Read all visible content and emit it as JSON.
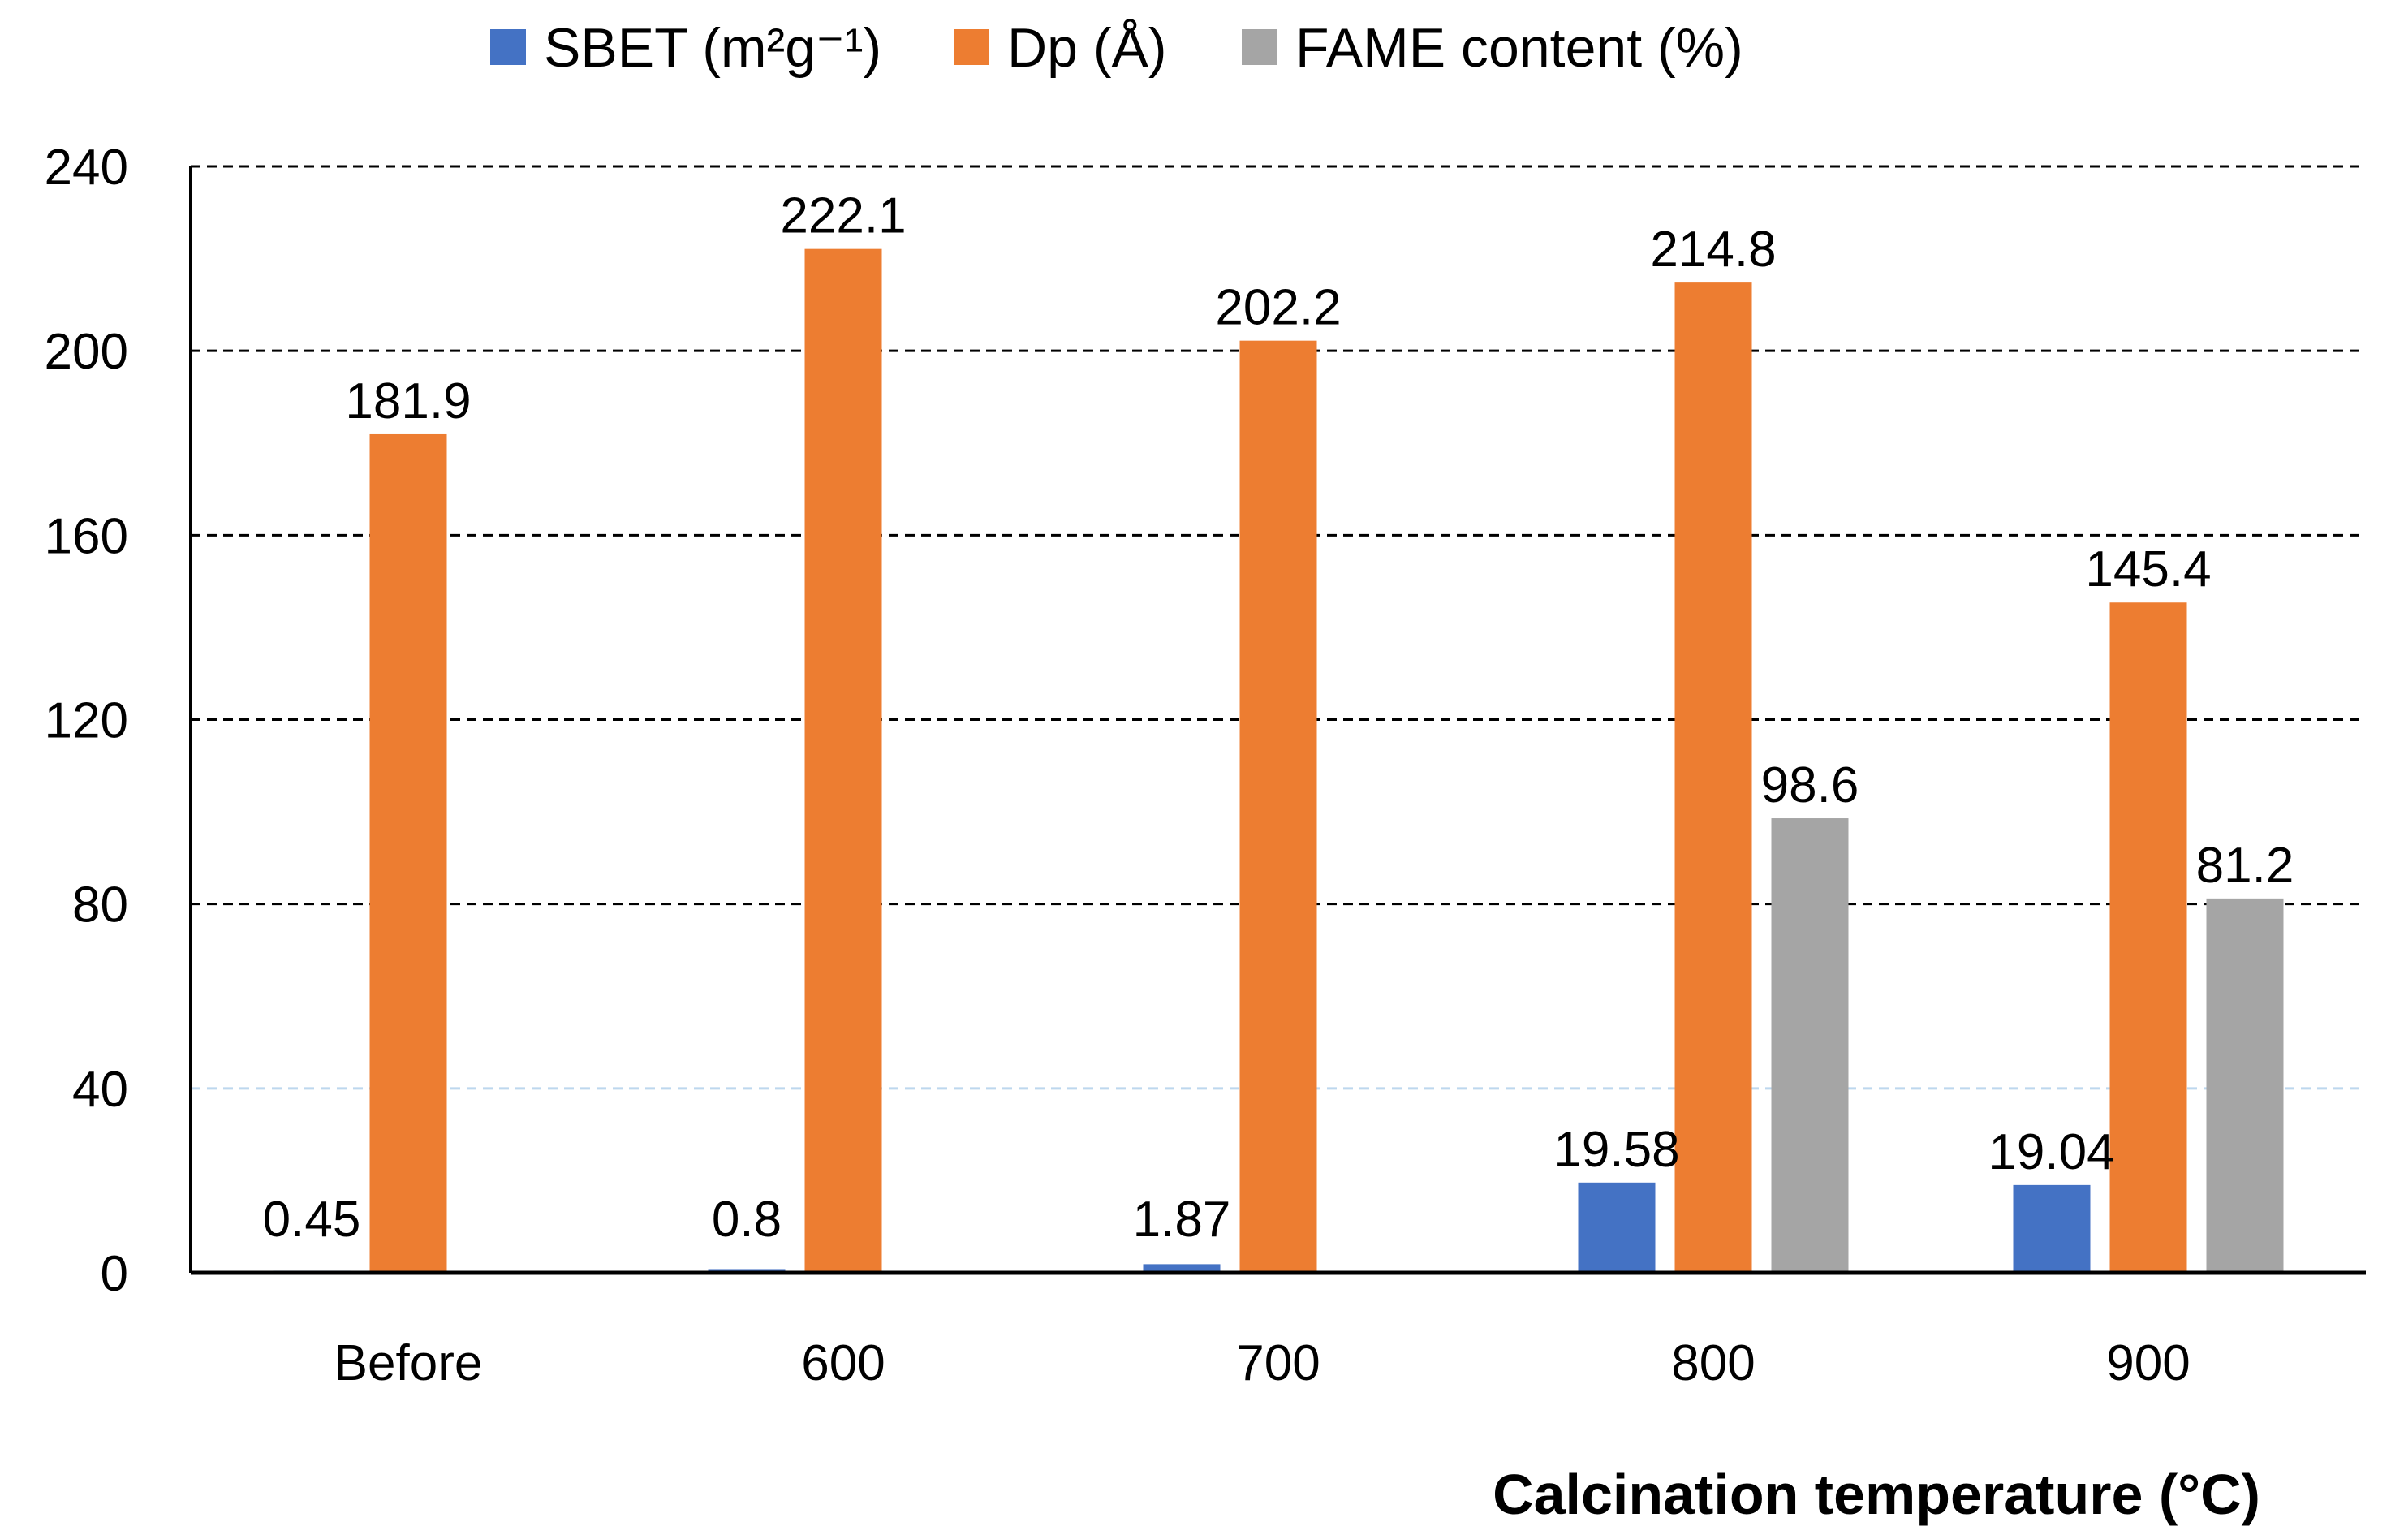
{
  "chart_data": {
    "type": "bar",
    "title": "",
    "xlabel": "Calcination temperature (°C)",
    "ylabel": "",
    "ylim": [
      0,
      240
    ],
    "yticks": [
      0,
      40,
      80,
      120,
      160,
      200,
      240
    ],
    "grid": true,
    "legend_position": "top",
    "categories": [
      "Before",
      "600",
      "700",
      "800",
      "900"
    ],
    "series": [
      {
        "name": "SBET (m²g⁻¹)",
        "color": "#4472C4",
        "values": [
          0.45,
          0.8,
          1.87,
          19.58,
          19.04
        ],
        "labels": [
          "0.45",
          "0.8",
          "1.87",
          "19.58",
          "19.04"
        ]
      },
      {
        "name": "Dp (Å)",
        "color": "#ED7D31",
        "values": [
          181.9,
          222.1,
          202.2,
          214.8,
          145.4
        ],
        "labels": [
          "181.9",
          "222.1",
          "202.2",
          "214.8",
          "145.4"
        ]
      },
      {
        "name": "FAME content (%)",
        "color": "#A5A5A5",
        "values": [
          null,
          null,
          null,
          98.6,
          81.2
        ],
        "labels": [
          "",
          "",
          "",
          "98.6",
          "81.2"
        ]
      }
    ]
  }
}
